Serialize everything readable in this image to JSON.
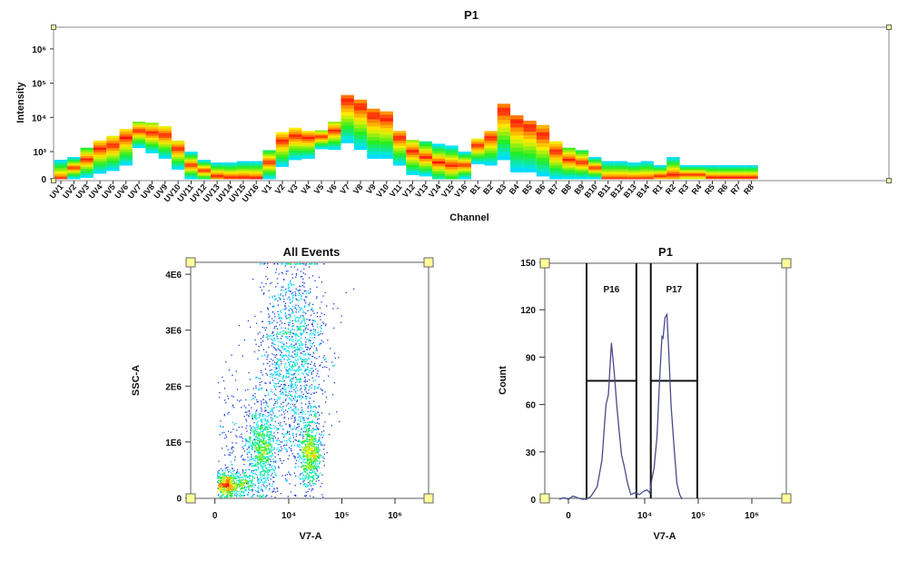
{
  "chart_data": [
    {
      "type": "heatmap",
      "title": "P1",
      "xlabel": "Channel",
      "ylabel": "Intensity",
      "y_scale": "biexponential",
      "y_ticks": [
        {
          "value": 0,
          "label": "0"
        },
        {
          "value": 1000,
          "label": "10³"
        },
        {
          "value": 10000,
          "label": "10⁴"
        },
        {
          "value": 100000,
          "label": "10⁵"
        },
        {
          "value": 1000000,
          "label": "10⁶"
        }
      ],
      "colormap": [
        "#1060ff",
        "#00e5ff",
        "#22ee22",
        "#ffee00",
        "#ff8800",
        "#ff1010"
      ],
      "channels": [
        {
          "name": "UV1",
          "low": 0,
          "high": 700,
          "peak": 0
        },
        {
          "name": "UV2",
          "low": 0,
          "high": 800,
          "peak": 400
        },
        {
          "name": "UV3",
          "low": 50,
          "high": 1300,
          "peak": 700
        },
        {
          "name": "UV4",
          "low": 200,
          "high": 2100,
          "peak": 1200
        },
        {
          "name": "UV5",
          "low": 300,
          "high": 2900,
          "peak": 1500
        },
        {
          "name": "UV6",
          "low": 500,
          "high": 4600,
          "peak": 2500
        },
        {
          "name": "UV7",
          "low": 1300,
          "high": 7500,
          "peak": 4000
        },
        {
          "name": "UV8",
          "low": 950,
          "high": 7000,
          "peak": 3500
        },
        {
          "name": "UV9",
          "low": 750,
          "high": 5500,
          "peak": 3000
        },
        {
          "name": "UV10",
          "low": 350,
          "high": 2100,
          "peak": 1200
        },
        {
          "name": "UV11",
          "low": 0,
          "high": 1000,
          "peak": 500
        },
        {
          "name": "UV12",
          "low": 0,
          "high": 700,
          "peak": 300
        },
        {
          "name": "UV13",
          "low": 0,
          "high": 600,
          "peak": 100
        },
        {
          "name": "UV14",
          "low": 0,
          "high": 600,
          "peak": 50
        },
        {
          "name": "UV15",
          "low": 0,
          "high": 650,
          "peak": 50
        },
        {
          "name": "UV16",
          "low": 0,
          "high": 650,
          "peak": 30
        },
        {
          "name": "V1",
          "low": 0,
          "high": 1100,
          "peak": 600
        },
        {
          "name": "V2",
          "low": 450,
          "high": 3700,
          "peak": 2000
        },
        {
          "name": "V3",
          "low": 700,
          "high": 5000,
          "peak": 2800
        },
        {
          "name": "V4",
          "low": 750,
          "high": 4000,
          "peak": 2500
        },
        {
          "name": "V5",
          "low": 1200,
          "high": 4200,
          "peak": 2700
        },
        {
          "name": "V6",
          "low": 1150,
          "high": 7500,
          "peak": 4000
        },
        {
          "name": "V7",
          "low": 1800,
          "high": 45000,
          "peak": 30000
        },
        {
          "name": "V8",
          "low": 1150,
          "high": 33000,
          "peak": 20000
        },
        {
          "name": "V9",
          "low": 750,
          "high": 18000,
          "peak": 11000
        },
        {
          "name": "V10",
          "low": 750,
          "high": 15000,
          "peak": 9000
        },
        {
          "name": "V11",
          "low": 500,
          "high": 4000,
          "peak": 2500
        },
        {
          "name": "V12",
          "low": 150,
          "high": 2200,
          "peak": 1000
        },
        {
          "name": "V13",
          "low": 100,
          "high": 2000,
          "peak": 800
        },
        {
          "name": "V14",
          "low": 0,
          "high": 1700,
          "peak": 600
        },
        {
          "name": "V15",
          "low": 0,
          "high": 1500,
          "peak": 500
        },
        {
          "name": "V16",
          "low": 0,
          "high": 1000,
          "peak": 500
        },
        {
          "name": "B1",
          "low": 550,
          "high": 2400,
          "peak": 1500
        },
        {
          "name": "B2",
          "low": 500,
          "high": 4000,
          "peak": 2500
        },
        {
          "name": "B3",
          "low": 700,
          "high": 25000,
          "peak": 15000
        },
        {
          "name": "B4",
          "low": 250,
          "high": 11500,
          "peak": 7000
        },
        {
          "name": "B5",
          "low": 250,
          "high": 8000,
          "peak": 5000
        },
        {
          "name": "B6",
          "low": 100,
          "high": 6000,
          "peak": 3000
        },
        {
          "name": "B7",
          "low": 0,
          "high": 2000,
          "peak": 1000
        },
        {
          "name": "B8",
          "low": 0,
          "high": 1300,
          "peak": 700
        },
        {
          "name": "B9",
          "low": 0,
          "high": 1100,
          "peak": 600
        },
        {
          "name": "B10",
          "low": 0,
          "high": 800,
          "peak": 400
        },
        {
          "name": "B11",
          "low": 0,
          "high": 650,
          "peak": 0
        },
        {
          "name": "B12",
          "low": 0,
          "high": 650,
          "peak": 0
        },
        {
          "name": "B13",
          "low": 0,
          "high": 600,
          "peak": 0
        },
        {
          "name": "B14",
          "low": 0,
          "high": 650,
          "peak": 0
        },
        {
          "name": "R1",
          "low": 0,
          "high": 500,
          "peak": 100
        },
        {
          "name": "R2",
          "low": 0,
          "high": 800,
          "peak": 150
        },
        {
          "name": "R3",
          "low": 0,
          "high": 500,
          "peak": 150
        },
        {
          "name": "R4",
          "low": 0,
          "high": 500,
          "peak": 150
        },
        {
          "name": "R5",
          "low": 0,
          "high": 500,
          "peak": 50
        },
        {
          "name": "R6",
          "low": 0,
          "high": 500,
          "peak": 50
        },
        {
          "name": "R7",
          "low": 0,
          "high": 500,
          "peak": 50
        },
        {
          "name": "R8",
          "low": 0,
          "high": 500,
          "peak": 50
        }
      ]
    },
    {
      "type": "scatter",
      "title": "All Events",
      "xlabel": "V7-A",
      "ylabel": "SSC-A",
      "x_scale": "biexponential",
      "ylim": [
        0,
        4200000
      ],
      "x_ticks": [
        {
          "value": 0,
          "label": "0"
        },
        {
          "value": 10000,
          "label": "10⁴"
        },
        {
          "value": 100000,
          "label": "10⁵"
        },
        {
          "value": 1000000,
          "label": "10⁶"
        }
      ],
      "y_ticks": [
        {
          "value": 0,
          "label": "0"
        },
        {
          "value": 1000000,
          "label": "1E6"
        },
        {
          "value": 2000000,
          "label": "2E6"
        },
        {
          "value": 3000000,
          "label": "3E6"
        },
        {
          "value": 4000000,
          "label": "4E6"
        }
      ],
      "populations": [
        {
          "x": 700,
          "x_sd_decades": 0.3,
          "y": 250000,
          "y_sd": 110000,
          "n": 700
        },
        {
          "x": 3000,
          "x_sd_decades": 0.14,
          "y": 900000,
          "y_sd": 350000,
          "n": 700
        },
        {
          "x": 25000,
          "x_sd_decades": 0.1,
          "y": 800000,
          "y_sd": 300000,
          "n": 700
        },
        {
          "x": 12000,
          "x_sd_decades": 0.3,
          "y": 2600000,
          "y_sd": 900000,
          "n": 1400
        },
        {
          "x": 3000,
          "x_sd_decades": 0.5,
          "y": 1200000,
          "y_sd": 800000,
          "n": 400
        }
      ]
    },
    {
      "type": "line",
      "title": "P1",
      "xlabel": "V7-A",
      "ylabel": "Count",
      "x_scale": "biexponential",
      "ylim": [
        0,
        150
      ],
      "x_ticks": [
        {
          "value": 0,
          "label": "0"
        },
        {
          "value": 10000,
          "label": "10⁴"
        },
        {
          "value": 100000,
          "label": "10⁵"
        },
        {
          "value": 1000000,
          "label": "10⁶"
        }
      ],
      "y_ticks": [
        {
          "value": 0,
          "label": "0"
        },
        {
          "value": 30,
          "label": "30"
        },
        {
          "value": 60,
          "label": "60"
        },
        {
          "value": 90,
          "label": "90"
        },
        {
          "value": 120,
          "label": "120"
        },
        {
          "value": 150,
          "label": "150"
        }
      ],
      "line_color": "#4a4a8a",
      "x": [
        -400,
        -200,
        0,
        200,
        400,
        600,
        800,
        1000,
        1300,
        1600,
        1900,
        2100,
        2400,
        2700,
        3000,
        3300,
        3700,
        4200,
        4800,
        5500,
        6500,
        8000,
        9500,
        11000,
        12500,
        13500,
        15000,
        17000,
        19000,
        21000,
        22000,
        24000,
        26000,
        28000,
        31000,
        35000,
        40000,
        45000,
        50000
      ],
      "y": [
        0,
        1,
        0,
        2,
        1,
        0,
        0,
        2,
        8,
        25,
        60,
        66,
        99,
        80,
        60,
        45,
        28,
        20,
        10,
        3,
        4,
        3,
        5,
        6,
        4,
        12,
        20,
        40,
        75,
        103,
        102,
        115,
        117,
        95,
        60,
        35,
        10,
        3,
        0
      ],
      "gates": [
        {
          "name": "P16",
          "from": 800,
          "to": 7000,
          "level": 75
        },
        {
          "name": "P17",
          "from": 13000,
          "to": 96000,
          "level": 75
        }
      ]
    }
  ]
}
